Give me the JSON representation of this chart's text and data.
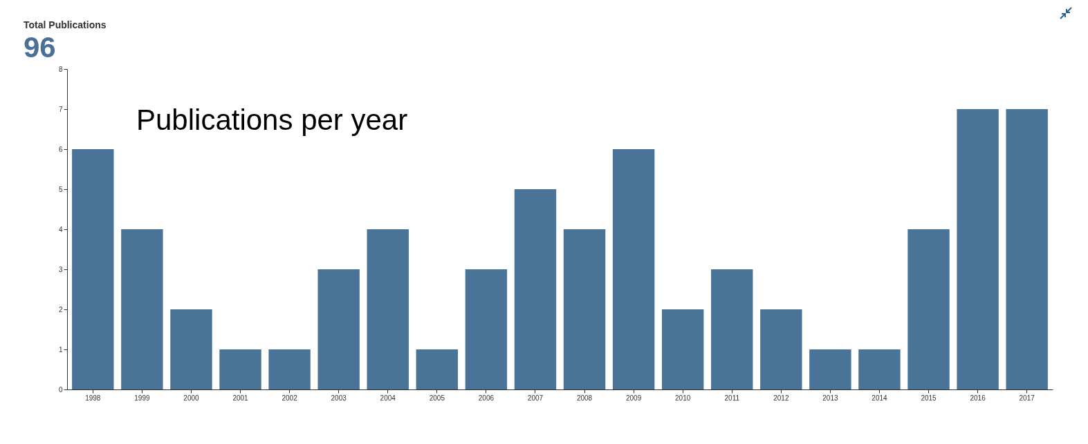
{
  "chart_data": {
    "type": "bar",
    "title": "Total Publications",
    "subtitle": "96",
    "annotations": [
      "Publications per year"
    ],
    "categories": [
      "1998",
      "1999",
      "2000",
      "2001",
      "2002",
      "2003",
      "2004",
      "2005",
      "2006",
      "2007",
      "2008",
      "2009",
      "2010",
      "2011",
      "2012",
      "2013",
      "2014",
      "2015",
      "2016",
      "2017"
    ],
    "values": [
      6,
      4,
      2,
      1,
      1,
      3,
      4,
      1,
      3,
      5,
      4,
      6,
      2,
      3,
      2,
      1,
      1,
      4,
      7,
      7
    ],
    "color": "#4a7398",
    "ylim": [
      0,
      8
    ],
    "yticks": [
      0,
      1,
      2,
      3,
      4,
      5,
      6,
      7,
      8
    ],
    "grid": false
  }
}
